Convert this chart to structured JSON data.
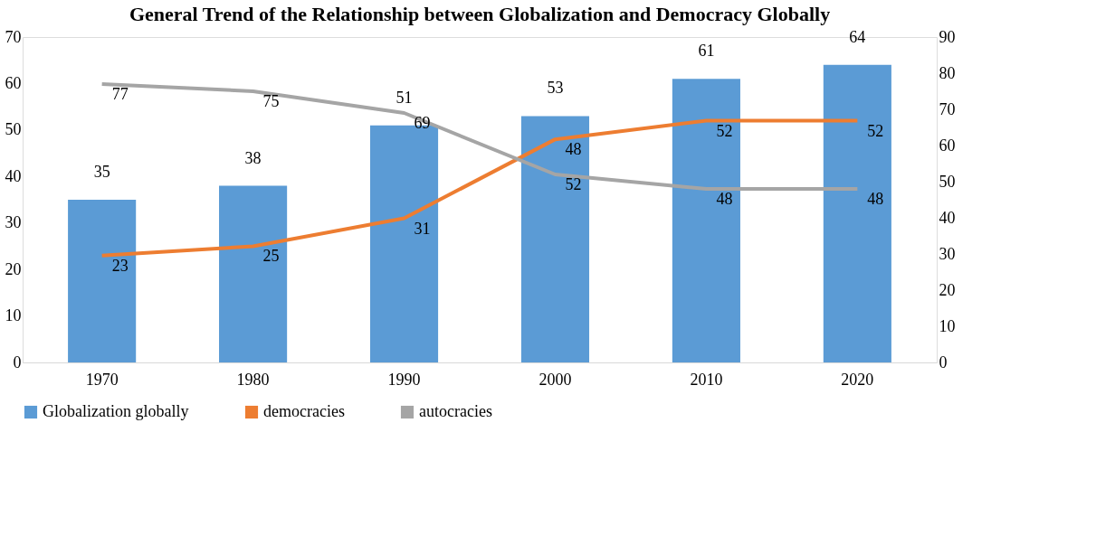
{
  "chart_data": {
    "type": "bar",
    "title": "General Trend of the Relationship between Globalization and Democracy Globally",
    "categories": [
      "1970",
      "1980",
      "1990",
      "2000",
      "2010",
      "2020"
    ],
    "series": [
      {
        "name": "Globalization globally",
        "color": "#5b9bd5",
        "values": [
          35,
          38,
          51,
          53,
          61,
          64
        ]
      },
      {
        "name": "democracies",
        "type": "line",
        "color": "#ed7d31",
        "values": [
          23,
          25,
          31,
          48,
          52,
          52
        ]
      },
      {
        "name": "autocracies",
        "type": "line",
        "axis": "y2",
        "color": "#a5a5a5",
        "values": [
          77,
          75,
          69,
          52,
          48,
          48
        ]
      }
    ],
    "ylim": [
      0,
      70
    ],
    "yticks": [
      0,
      10,
      20,
      30,
      40,
      50,
      60,
      70
    ],
    "y2lim": [
      0,
      90
    ],
    "y2ticks": [
      0,
      10,
      20,
      30,
      40,
      50,
      60,
      70,
      80,
      90
    ],
    "data_labels": true,
    "legend": "bottom",
    "grid": false
  }
}
